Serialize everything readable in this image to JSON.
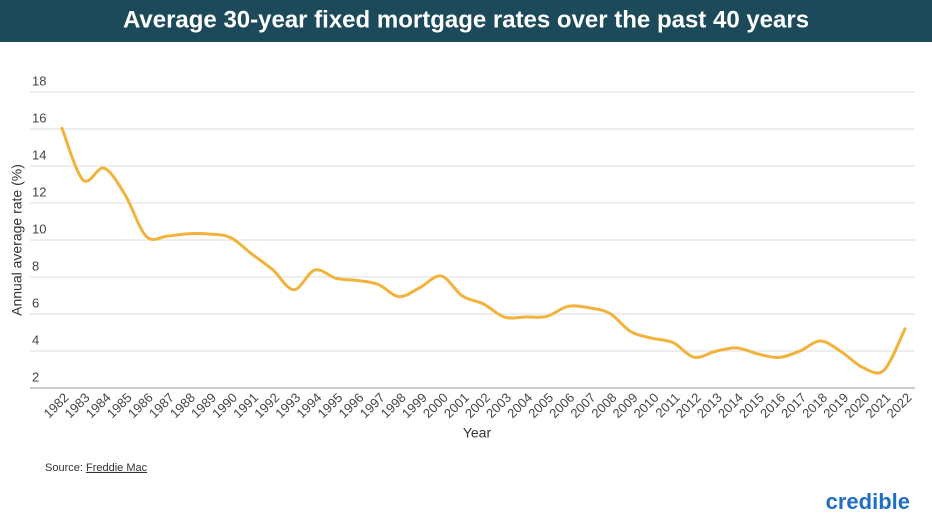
{
  "chart_data": {
    "type": "line",
    "title": "Average 30-year fixed mortgage rates over the past 40 years",
    "ylabel": "Annual average rate (%)",
    "xlabel": "Year",
    "source_label": "Source:",
    "source_name": "Freddie Mac",
    "brand": "credible",
    "categories": [
      "1982",
      "1983",
      "1984",
      "1985",
      "1986",
      "1987",
      "1988",
      "1989",
      "1990",
      "1991",
      "1992",
      "1993",
      "1994",
      "1995",
      "1996",
      "1997",
      "1998",
      "1999",
      "2000",
      "2001",
      "2002",
      "2003",
      "2004",
      "2005",
      "2006",
      "2007",
      "2008",
      "2009",
      "2010",
      "2011",
      "2012",
      "2013",
      "2014",
      "2015",
      "2016",
      "2017",
      "2018",
      "2019",
      "2020",
      "2021",
      "2022"
    ],
    "series": [
      {
        "name": "Annual average rate",
        "color": "#f2b33d",
        "values": [
          16.04,
          13.24,
          13.88,
          12.43,
          10.19,
          10.21,
          10.34,
          10.32,
          10.13,
          9.25,
          8.39,
          7.31,
          8.38,
          7.93,
          7.81,
          7.6,
          6.94,
          7.44,
          8.05,
          6.97,
          6.54,
          5.83,
          5.84,
          5.87,
          6.41,
          6.34,
          6.03,
          5.04,
          4.69,
          4.45,
          3.66,
          3.98,
          4.17,
          3.85,
          3.65,
          3.99,
          4.54,
          3.94,
          3.11,
          2.96,
          5.2
        ]
      }
    ],
    "ylim": [
      2,
      18
    ],
    "yticks": [
      2,
      4,
      6,
      8,
      10,
      12,
      14,
      16,
      18
    ],
    "grid": true
  }
}
